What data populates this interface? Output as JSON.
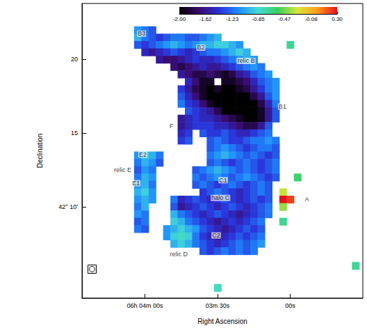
{
  "chart_data": {
    "type": "heatmap",
    "x_label": "Right Ascension",
    "y_label": "Declination",
    "xlim": [
      266,
      150
    ],
    "xticks": [
      {
        "value": 240,
        "label": "06h 04m 00s"
      },
      {
        "value": 210,
        "label": "03m 30s"
      },
      {
        "value": 180,
        "label": "00s"
      }
    ],
    "ylim": [
      3.8,
      23.8
    ],
    "yticks": [
      {
        "value": 10,
        "label": "42° 10'"
      },
      15,
      20
    ],
    "grid": false,
    "cell_size": [
      3,
      0.5
    ],
    "rows": [
      {
        "y": 22,
        "x_start": 243,
        "values": [
          -1.1,
          -1.2,
          -1.3
        ]
      },
      {
        "y": 21.5,
        "x_start": 243,
        "values": [
          -1.0,
          -1.2,
          -1.3,
          -1.4,
          -1.3,
          -1.2,
          -1.2,
          -1.3,
          -1.3,
          -1.2,
          -1.1,
          -1.0
        ]
      },
      {
        "y": 21,
        "x_start": 243,
        "values": [
          -1.3,
          -1.4,
          -1.3,
          -1.2,
          -1.1,
          -1.0,
          -1.1,
          -1.2,
          -1.1,
          -1.0,
          -1.0,
          -0.9,
          -0.9,
          -1.0,
          -1.1,
          null,
          null,
          null,
          null,
          null,
          null,
          -0.7
        ]
      },
      {
        "y": 20.5,
        "x_start": 240,
        "values": [
          -1.5,
          -1.6,
          -1.5,
          -1.4,
          -1.3,
          -1.4,
          -1.5,
          -1.4,
          -1.3,
          -1.2,
          -1.2,
          -1.1,
          -1.0,
          -0.9,
          -1.0
        ]
      },
      {
        "y": 20,
        "x_start": 234,
        "values": [
          -1.6,
          -1.7,
          -1.7,
          -1.6,
          -1.5,
          -1.4,
          -1.5,
          -1.5,
          -1.4,
          -1.3,
          -1.2,
          -1.1,
          -1.0,
          -1.1
        ]
      },
      {
        "y": 19.5,
        "x_start": 228,
        "values": [
          -1.7,
          -1.8,
          -1.7,
          -1.6,
          -1.5,
          -1.6,
          -1.6,
          -1.5,
          -1.4,
          -1.3,
          -1.2,
          -1.1,
          -1.2
        ]
      },
      {
        "y": 19,
        "x_start": 225,
        "values": [
          -1.6,
          -1.7,
          -1.8,
          -1.8,
          -1.7,
          -1.8,
          -1.9,
          -1.8,
          -1.6,
          -1.5,
          -1.3,
          -1.2,
          -1.1
        ]
      },
      {
        "y": 18.5,
        "x_start": 222,
        "values": [
          -1.5,
          -1.7,
          -1.9,
          -1.9,
          null,
          -1.9,
          -1.9,
          -1.8,
          -1.7,
          -1.5,
          -1.3,
          -1.2,
          -1.1
        ]
      },
      {
        "y": 18,
        "x_start": 225,
        "values": [
          -1.4,
          -1.6,
          -1.8,
          -1.9,
          -2.0,
          -1.9,
          -2.0,
          -2.0,
          -1.9,
          -1.8,
          -1.6,
          -1.4,
          -1.2,
          -1.1
        ]
      },
      {
        "y": 17.5,
        "x_start": 225,
        "values": [
          -1.3,
          -1.5,
          -1.7,
          -1.9,
          -2.0,
          -2.0,
          -2.0,
          -2.0,
          -2.0,
          -2.0,
          -1.8,
          -1.6,
          -1.3,
          -1.1
        ]
      },
      {
        "y": 17,
        "x_start": 225,
        "values": [
          -1.2,
          -1.4,
          -1.5,
          -1.7,
          -1.9,
          -2.0,
          -2.0,
          -2.0,
          -2.0,
          -2.0,
          -2.0,
          -1.8,
          -1.5,
          -1.2
        ]
      },
      {
        "y": 16.5,
        "x_start": 222,
        "values": [
          -1.3,
          -1.4,
          -1.5,
          -1.6,
          -1.8,
          -2.0,
          -2.0,
          -2.0,
          -2.0,
          -2.0,
          -1.9,
          -1.6,
          -1.3
        ]
      },
      {
        "y": 16,
        "x_start": 225,
        "values": [
          -1.6,
          -1.5,
          -1.4,
          -1.5,
          -1.5,
          -1.6,
          -1.7,
          -1.8,
          -1.9,
          -2.0,
          -2.0,
          -1.9,
          -1.6,
          -1.3
        ]
      },
      {
        "y": 15.5,
        "x_start": 225,
        "values": [
          -1.6,
          -1.5,
          -1.4,
          -1.4,
          -1.4,
          -1.5,
          -1.5,
          -1.6,
          -1.7,
          -1.8,
          -1.8,
          -1.6,
          -1.3
        ]
      },
      {
        "y": 15,
        "x_start": 225,
        "values": [
          -1.5,
          -1.4,
          null,
          -1.3,
          -1.4,
          -1.4,
          -1.3,
          -1.4,
          -1.5,
          -1.5,
          -1.4,
          -1.3,
          -1.2
        ]
      },
      {
        "y": 14.5,
        "x_start": 225,
        "values": [
          -1.4,
          -1.3,
          null,
          null,
          -1.3,
          -1.2,
          -1.3,
          -1.4,
          -1.4,
          -1.3,
          -1.2,
          -1.2,
          -1.1,
          -1.2
        ]
      },
      {
        "y": 14,
        "x_start": 213,
        "values": [
          -1.3,
          -1.2,
          -1.1,
          -1.2,
          -1.3,
          -1.4,
          -1.3,
          -1.2,
          -1.2,
          -1.3
        ]
      },
      {
        "y": 13.5,
        "x_start": 243,
        "values": [
          -1.1,
          -0.9,
          -1.0,
          -1.2,
          null,
          null,
          null,
          null,
          null,
          null,
          -1.2,
          -1.1,
          -1.0,
          -1.1,
          -1.2,
          -1.3,
          -1.2,
          -1.3,
          -1.4,
          -1.3
        ]
      },
      {
        "y": 13,
        "x_start": 243,
        "values": [
          -1.2,
          -1.0,
          -1.1,
          -1.3,
          null,
          null,
          null,
          null,
          null,
          null,
          -1.3,
          -1.2,
          -1.3,
          -1.4,
          -1.3,
          -1.2,
          -1.3,
          -1.4,
          -1.3,
          -1.2
        ]
      },
      {
        "y": 12.5,
        "x_start": 243,
        "values": [
          -1.3,
          -1.1,
          -1.2,
          null,
          null,
          null,
          null,
          null,
          -1.3,
          -1.2,
          -1.1,
          -1.0,
          -1.1,
          -1.2,
          -1.3,
          -1.2,
          -1.3,
          -1.4,
          -1.3,
          -1.2
        ]
      },
      {
        "y": 12,
        "x_start": 243,
        "values": [
          -1.2,
          -1.0,
          -1.1,
          null,
          null,
          null,
          null,
          null,
          -1.2,
          -1.3,
          -1.2,
          -1.1,
          -1.2,
          -1.3,
          -1.2,
          -1.1,
          -1.2,
          -1.3,
          -1.4,
          -1.3,
          null,
          null,
          -0.6
        ]
      },
      {
        "y": 11.5,
        "x_start": 243,
        "values": [
          -1.1,
          -1.0,
          -1.2,
          null,
          null,
          null,
          null,
          null,
          -1.3,
          -1.2,
          -1.3,
          -1.4,
          -1.3,
          -1.2,
          -1.3,
          -1.4,
          -1.3,
          -1.2,
          -1.3
        ]
      },
      {
        "y": 11,
        "x_start": 243,
        "values": [
          -1.0,
          -0.9,
          -1.1,
          null,
          null,
          null,
          null,
          null,
          null,
          -1.4,
          -1.3,
          -1.2,
          -1.3,
          -1.4,
          -1.5,
          -1.4,
          -1.3,
          -1.2,
          -1.3,
          null,
          -0.3
        ]
      },
      {
        "y": 10.5,
        "x_start": 243,
        "values": [
          -1.1,
          -1.0,
          -1.1,
          null,
          null,
          -1.2,
          -1.5,
          -1.4,
          -1.3,
          -1.4,
          -1.5,
          -1.4,
          -1.3,
          -1.4,
          -1.5,
          -1.4,
          -1.3,
          -1.4,
          -1.3,
          null,
          0.3,
          0.2
        ]
      },
      {
        "y": 10,
        "x_start": 243,
        "values": [
          -1.2,
          -1.0,
          null,
          null,
          null,
          -1.3,
          -1.6,
          -1.5,
          -1.4,
          -1.3,
          -1.4,
          -1.5,
          -1.4,
          -1.3,
          -1.4,
          -1.5,
          -1.4,
          -1.3,
          -1.2,
          null,
          -0.4
        ]
      },
      {
        "y": 9.5,
        "x_start": 243,
        "values": [
          -1.1,
          -1.2,
          null,
          null,
          null,
          -1.0,
          -1.2,
          -1.3,
          -1.4,
          -1.5,
          -1.4,
          -1.3,
          -1.4,
          -1.5,
          -1.6,
          -1.5,
          -1.4,
          -1.3,
          -1.2
        ]
      },
      {
        "y": 9,
        "x_start": 243,
        "values": [
          -1.3,
          -1.2,
          null,
          null,
          null,
          -0.9,
          -1.0,
          -1.2,
          -1.3,
          -1.4,
          -1.5,
          -1.6,
          -1.5,
          -1.4,
          -1.5,
          -1.4,
          -1.3,
          -1.2,
          null,
          null,
          -0.7
        ]
      },
      {
        "y": 8.5,
        "x_start": 243,
        "values": [
          -1.2,
          -1.3,
          null,
          null,
          -1.1,
          -1.0,
          -0.9,
          -1.0,
          -1.1,
          -1.3,
          -1.4,
          -1.5,
          -1.6,
          -1.5,
          -1.4,
          -1.3,
          -1.4,
          -1.3
        ]
      },
      {
        "y": 8,
        "x_start": 231,
        "values": [
          -1.1,
          -0.9,
          -0.8,
          -0.9,
          -1.2,
          -1.4,
          -1.5,
          -1.6,
          -1.5,
          -1.4,
          -1.3,
          -1.4,
          -1.3,
          -1.2
        ]
      },
      {
        "y": 7.5,
        "x_start": 228,
        "values": [
          -1.0,
          -0.9,
          -1.0,
          -1.2,
          -1.3,
          -1.4,
          -1.5,
          -1.4,
          -1.3,
          -1.2,
          -1.3,
          -1.2,
          -1.1
        ]
      },
      {
        "y": 7,
        "x_start": 216,
        "values": [
          -1.3,
          -1.4,
          -1.3,
          -1.2,
          -1.3,
          -1.2,
          -1.3,
          -1.2
        ]
      },
      {
        "y": 6,
        "x_start": 153,
        "values": [
          -0.7
        ]
      },
      {
        "y": 4.5,
        "x_start": 210,
        "values": [
          -0.8
        ]
      }
    ],
    "colorbar": {
      "range": [
        -2.0,
        0.3
      ],
      "ticks": [
        {
          "value": -2.0,
          "label": "-2.00"
        },
        {
          "value": -1.62,
          "label": "-1.62"
        },
        {
          "value": -1.23,
          "label": "-1.23"
        },
        {
          "value": -0.85,
          "label": "-0.85"
        },
        {
          "value": -0.47,
          "label": "-0.47"
        },
        {
          "value": -0.08,
          "label": "-0.08"
        },
        {
          "value": 0.3,
          "label": "0.30"
        }
      ]
    },
    "annotations": [
      {
        "text": "B3",
        "x": 241.4,
        "y": 21.75
      },
      {
        "text": "B2",
        "x": 216.9,
        "y": 20.8
      },
      {
        "text": "relic B",
        "x": 198.2,
        "y": 19.9
      },
      {
        "text": "B1",
        "x": 183.2,
        "y": 16.8
      },
      {
        "text": "F",
        "x": 229,
        "y": 15.5
      },
      {
        "text": "E2",
        "x": 240.9,
        "y": 13.55
      },
      {
        "text": "relic E",
        "x": 249.2,
        "y": 12.5
      },
      {
        "text": "E1",
        "x": 243.7,
        "y": 11.6
      },
      {
        "text": "C1",
        "x": 207.7,
        "y": 11.8
      },
      {
        "text": "halo C",
        "x": 208.8,
        "y": 10.6
      },
      {
        "text": "A",
        "x": 173.1,
        "y": 10.5
      },
      {
        "text": "relic D",
        "x": 226,
        "y": 6.8
      },
      {
        "text": "C2",
        "x": 210.6,
        "y": 8.05
      }
    ]
  }
}
